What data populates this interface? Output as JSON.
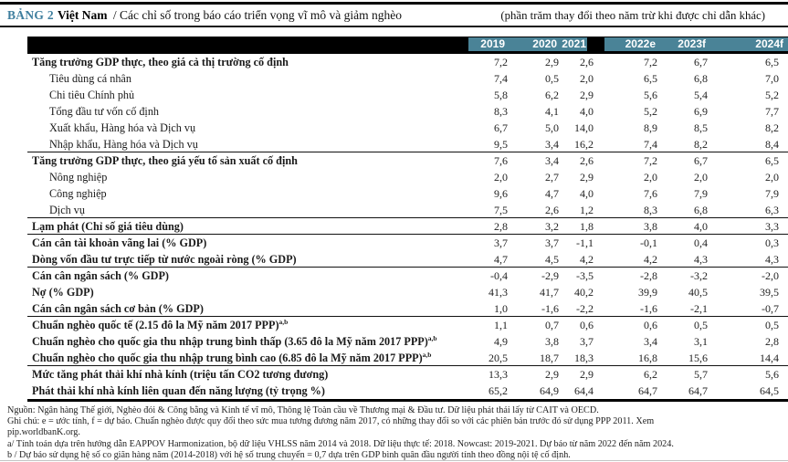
{
  "title": {
    "tag": "BẢNG 2",
    "country": "Việt Nam",
    "subtitle": "/ Các chỉ số trong báo cáo triển vọng vĩ mô và giảm nghèo",
    "unit_note": "(phần trăm thay đổi theo năm trừ khi được chỉ dẫn khác)"
  },
  "colors": {
    "accent_teal": "#4A8397",
    "tag_blue": "#3E7E9E",
    "header_background": "#000000"
  },
  "table": {
    "columns": [
      "2019",
      "2020",
      "2021",
      "2022e",
      "2023f",
      "2024f"
    ],
    "rows": [
      {
        "label": "Tăng trưởng GDP thực, theo giá cả thị trường cố định",
        "bold": true,
        "indent": false,
        "sup": "",
        "rule_below": false,
        "values": [
          "7,2",
          "2,9",
          "2,6",
          "7,2",
          "6,7",
          "6,5"
        ]
      },
      {
        "label": "Tiêu dùng cá nhân",
        "bold": false,
        "indent": true,
        "sup": "",
        "rule_below": false,
        "values": [
          "7,4",
          "0,5",
          "2,0",
          "6,5",
          "6,8",
          "7,0"
        ]
      },
      {
        "label": "Chi tiêu Chính phủ",
        "bold": false,
        "indent": true,
        "sup": "",
        "rule_below": false,
        "values": [
          "5,8",
          "6,2",
          "2,9",
          "5,6",
          "5,4",
          "5,2"
        ]
      },
      {
        "label": "Tổng đầu tư vốn cố định",
        "bold": false,
        "indent": true,
        "sup": "",
        "rule_below": false,
        "values": [
          "8,3",
          "4,1",
          "4,0",
          "5,2",
          "6,9",
          "7,7"
        ]
      },
      {
        "label": "Xuất khẩu, Hàng hóa và Dịch vụ",
        "bold": false,
        "indent": true,
        "sup": "",
        "rule_below": false,
        "values": [
          "6,7",
          "5,0",
          "14,0",
          "8,9",
          "8,5",
          "8,2"
        ]
      },
      {
        "label": "Nhập khẩu, Hàng hóa và Dịch vụ",
        "bold": false,
        "indent": true,
        "sup": "",
        "rule_below": true,
        "values": [
          "9,5",
          "3,4",
          "16,2",
          "7,4",
          "8,2",
          "8,4"
        ]
      },
      {
        "label": "Tăng trưởng GDP thực, theo giá yếu tố sản xuất cố định",
        "bold": true,
        "indent": false,
        "sup": "",
        "rule_below": false,
        "values": [
          "7,6",
          "3,4",
          "2,6",
          "7,2",
          "6,7",
          "6,5"
        ]
      },
      {
        "label": "Nông nghiệp",
        "bold": false,
        "indent": true,
        "sup": "",
        "rule_below": false,
        "values": [
          "2,0",
          "2,7",
          "2,9",
          "2,0",
          "2,0",
          "2,0"
        ]
      },
      {
        "label": "Công nghiệp",
        "bold": false,
        "indent": true,
        "sup": "",
        "rule_below": false,
        "values": [
          "9,6",
          "4,7",
          "4,0",
          "7,6",
          "7,9",
          "7,9"
        ]
      },
      {
        "label": "Dịch vụ",
        "bold": false,
        "indent": true,
        "sup": "",
        "rule_below": true,
        "values": [
          "7,5",
          "2,6",
          "1,2",
          "8,3",
          "6,8",
          "6,3"
        ]
      },
      {
        "label": "Lạm phát (Chỉ số giá tiêu dùng)",
        "bold": true,
        "indent": false,
        "sup": "",
        "rule_below": true,
        "values": [
          "2,8",
          "3,2",
          "1,8",
          "3,8",
          "4,0",
          "3,3"
        ]
      },
      {
        "label": "Cán cân tài khoản vãng lai (% GDP)",
        "bold": true,
        "indent": false,
        "sup": "",
        "rule_below": false,
        "values": [
          "3,7",
          "3,7",
          "-1,1",
          "-0,1",
          "0,4",
          "0,3"
        ]
      },
      {
        "label": "Dòng vốn đầu tư trực tiếp từ nước ngoài ròng (% GDP)",
        "bold": true,
        "indent": false,
        "sup": "",
        "rule_below": true,
        "values": [
          "4,7",
          "4,5",
          "4,2",
          "4,2",
          "4,3",
          "4,3"
        ]
      },
      {
        "label": "Cán cân ngân sách (% GDP)",
        "bold": true,
        "indent": false,
        "sup": "",
        "rule_below": false,
        "values": [
          "-0,4",
          "-2,9",
          "-3,5",
          "-2,8",
          "-3,2",
          "-2,0"
        ]
      },
      {
        "label": "Nợ (% GDP)",
        "bold": true,
        "indent": false,
        "sup": "",
        "rule_below": false,
        "values": [
          "41,3",
          "41,7",
          "40,2",
          "39,9",
          "40,5",
          "39,5"
        ]
      },
      {
        "label": "Cán cân ngân sách cơ bản (% GDP)",
        "bold": true,
        "indent": false,
        "sup": "",
        "rule_below": true,
        "values": [
          "1,0",
          "-1,6",
          "-2,2",
          "-1,6",
          "-2,1",
          "-0,7"
        ]
      },
      {
        "label": "Chuẩn nghèo quốc tế (2.15 đô la Mỹ năm 2017 PPP)",
        "bold": true,
        "indent": false,
        "sup": "a,b",
        "rule_below": false,
        "values": [
          "1,1",
          "0,7",
          "0,6",
          "0,6",
          "0,5",
          "0,5"
        ]
      },
      {
        "label": "Chuẩn nghèo cho quốc gia thu nhập trung bình thấp (3.65 đô la Mỹ năm 2017 PPP)",
        "bold": true,
        "indent": false,
        "sup": "a,b",
        "rule_below": false,
        "values": [
          "4,9",
          "3,8",
          "3,7",
          "3,4",
          "3,1",
          "2,8"
        ]
      },
      {
        "label": "Chuẩn nghèo cho quốc gia thu nhập trung bình cao (6.85 đô la Mỹ năm 2017 PPP)",
        "bold": true,
        "indent": false,
        "sup": "a,b",
        "rule_below": true,
        "values": [
          "20,5",
          "18,7",
          "18,3",
          "16,8",
          "15,6",
          "14,4"
        ]
      },
      {
        "label": "Mức tăng phát thải khí nhà kính (triệu tấn CO2 tương đương)",
        "bold": true,
        "indent": false,
        "sup": "",
        "rule_below": false,
        "values": [
          "13,3",
          "2,9",
          "2,9",
          "6,2",
          "5,7",
          "5,6"
        ]
      },
      {
        "label": "Phát thải khí nhà kính liên quan đến năng lượng (tỷ trọng %)",
        "bold": true,
        "indent": false,
        "sup": "",
        "rule_below": false,
        "values": [
          "65,2",
          "64,9",
          "64,4",
          "64,7",
          "64,7",
          "64,5"
        ]
      }
    ]
  },
  "footnotes": [
    "Nguồn: Ngân hàng Thế giới, Nghèo đói & Công bằng và Kinh tế vĩ mô, Thông lệ Toàn cầu về Thương mại & Đầu tư. Dữ liệu phát thải lấy từ CAIT và OECD.",
    "Ghi chú: e = ước tính, f = dự báo. Chuẩn nghèo được quy đổi theo sức mua tương đương năm 2017, có những thay đổi so với các phiên bản trước đó sử dụng PPP 2011. Xem",
    "pip.worldbanK.org.",
    "a/ Tính toán dựa trên hướng dẫn EAPPOV Harmonization, bộ dữ liệu VHLSS năm 2014 và 2018. Dữ liệu thực tế: 2018. Nowcast: 2019-2021. Dự báo từ năm 2022 đến năm 2024.",
    "b / Dự báo sử dụng hệ số co giãn hàng năm (2014-2018) với hệ số trung chuyển = 0,7 dựa trên GDP bình quân đầu người tính theo đồng nội tệ cố định."
  ]
}
